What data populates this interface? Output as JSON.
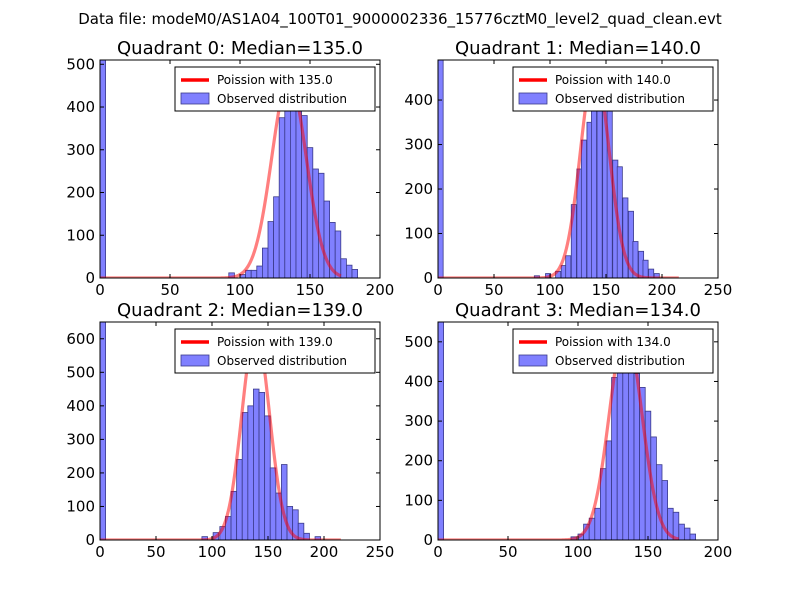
{
  "figure": {
    "suptitle": "Data file: modeM0/AS1A04_100T01_9000002336_15776cztM0_level2_quad_clean.evt"
  },
  "colors": {
    "bar_fill": "#8080ff",
    "bar_edge": "#3a3a8a",
    "fit_line": "#ff0000",
    "axes": "#000000",
    "legend_border": "#000000"
  },
  "chart_data": [
    {
      "type": "bar",
      "title": "Quadrant 0: Median=135.0",
      "xlim": [
        0,
        200
      ],
      "ylim": [
        0,
        510
      ],
      "xticks": [
        0,
        50,
        100,
        150,
        200
      ],
      "yticks": [
        0,
        100,
        200,
        300,
        400,
        500
      ],
      "bin_width": 4,
      "median": 135.0,
      "fit_peak": 466,
      "fit_sigma": 12.3,
      "bars": [
        {
          "x": 0,
          "y": 510
        },
        {
          "x": 92,
          "y": 12
        },
        {
          "x": 100,
          "y": 8
        },
        {
          "x": 104,
          "y": 18
        },
        {
          "x": 108,
          "y": 18
        },
        {
          "x": 112,
          "y": 28
        },
        {
          "x": 116,
          "y": 70
        },
        {
          "x": 120,
          "y": 132
        },
        {
          "x": 124,
          "y": 190
        },
        {
          "x": 128,
          "y": 375
        },
        {
          "x": 132,
          "y": 410
        },
        {
          "x": 136,
          "y": 430
        },
        {
          "x": 140,
          "y": 400
        },
        {
          "x": 144,
          "y": 380
        },
        {
          "x": 148,
          "y": 305
        },
        {
          "x": 152,
          "y": 255
        },
        {
          "x": 156,
          "y": 245
        },
        {
          "x": 160,
          "y": 180
        },
        {
          "x": 164,
          "y": 130
        },
        {
          "x": 168,
          "y": 110
        },
        {
          "x": 172,
          "y": 45
        },
        {
          "x": 176,
          "y": 30
        },
        {
          "x": 180,
          "y": 20
        }
      ],
      "legend": {
        "line_label": "Poission with 135.0",
        "bar_label": "Observed distribution"
      }
    },
    {
      "type": "bar",
      "title": "Quadrant 1: Median=140.0",
      "xlim": [
        0,
        250
      ],
      "ylim": [
        0,
        490
      ],
      "xticks": [
        0,
        50,
        100,
        150,
        200,
        250
      ],
      "yticks": [
        0,
        100,
        200,
        300,
        400
      ],
      "bin_width": 4.6,
      "median": 140.0,
      "fit_peak": 472,
      "fit_sigma": 12.8,
      "bars": [
        {
          "x": 0,
          "y": 490
        },
        {
          "x": 86,
          "y": 5
        },
        {
          "x": 96,
          "y": 10
        },
        {
          "x": 105,
          "y": 15
        },
        {
          "x": 110,
          "y": 28
        },
        {
          "x": 114,
          "y": 50
        },
        {
          "x": 119,
          "y": 165
        },
        {
          "x": 124,
          "y": 245
        },
        {
          "x": 128,
          "y": 310
        },
        {
          "x": 133,
          "y": 350
        },
        {
          "x": 137,
          "y": 385
        },
        {
          "x": 142,
          "y": 395
        },
        {
          "x": 147,
          "y": 425
        },
        {
          "x": 151,
          "y": 375
        },
        {
          "x": 156,
          "y": 265
        },
        {
          "x": 160,
          "y": 250
        },
        {
          "x": 165,
          "y": 180
        },
        {
          "x": 170,
          "y": 150
        },
        {
          "x": 174,
          "y": 82
        },
        {
          "x": 179,
          "y": 60
        },
        {
          "x": 183,
          "y": 40
        },
        {
          "x": 188,
          "y": 20
        },
        {
          "x": 193,
          "y": 10
        }
      ],
      "legend": {
        "line_label": "Poission with 140.0",
        "bar_label": "Observed distribution"
      }
    },
    {
      "type": "bar",
      "title": "Quadrant 2: Median=139.0",
      "xlim": [
        0,
        250
      ],
      "ylim": [
        0,
        650
      ],
      "xticks": [
        0,
        50,
        100,
        150,
        200,
        250
      ],
      "yticks": [
        0,
        100,
        200,
        300,
        400,
        500,
        600
      ],
      "bin_width": 5,
      "median": 139.0,
      "fit_peak": 622,
      "fit_sigma": 12.3,
      "bars": [
        {
          "x": 0,
          "y": 650
        },
        {
          "x": 91,
          "y": 10
        },
        {
          "x": 101,
          "y": 22
        },
        {
          "x": 107,
          "y": 40
        },
        {
          "x": 112,
          "y": 70
        },
        {
          "x": 117,
          "y": 145
        },
        {
          "x": 122,
          "y": 240
        },
        {
          "x": 127,
          "y": 380
        },
        {
          "x": 132,
          "y": 400
        },
        {
          "x": 137,
          "y": 450
        },
        {
          "x": 142,
          "y": 440
        },
        {
          "x": 147,
          "y": 370
        },
        {
          "x": 152,
          "y": 215
        },
        {
          "x": 157,
          "y": 140
        },
        {
          "x": 162,
          "y": 225
        },
        {
          "x": 167,
          "y": 100
        },
        {
          "x": 172,
          "y": 90
        },
        {
          "x": 177,
          "y": 50
        },
        {
          "x": 182,
          "y": 20
        },
        {
          "x": 192,
          "y": 10
        }
      ],
      "legend": {
        "line_label": "Poission with 139.0",
        "bar_label": "Observed distribution"
      }
    },
    {
      "type": "bar",
      "title": "Quadrant 3: Median=134.0",
      "xlim": [
        0,
        200
      ],
      "ylim": [
        0,
        550
      ],
      "xticks": [
        0,
        50,
        100,
        150,
        200
      ],
      "yticks": [
        0,
        100,
        200,
        300,
        400,
        500
      ],
      "bin_width": 4,
      "median": 134.0,
      "fit_peak": 528,
      "fit_sigma": 11.6,
      "bars": [
        {
          "x": 0,
          "y": 550
        },
        {
          "x": 95,
          "y": 8
        },
        {
          "x": 100,
          "y": 15
        },
        {
          "x": 104,
          "y": 40
        },
        {
          "x": 108,
          "y": 55
        },
        {
          "x": 112,
          "y": 80
        },
        {
          "x": 116,
          "y": 180
        },
        {
          "x": 120,
          "y": 250
        },
        {
          "x": 124,
          "y": 410
        },
        {
          "x": 128,
          "y": 475
        },
        {
          "x": 132,
          "y": 520
        },
        {
          "x": 136,
          "y": 510
        },
        {
          "x": 140,
          "y": 420
        },
        {
          "x": 144,
          "y": 385
        },
        {
          "x": 148,
          "y": 325
        },
        {
          "x": 152,
          "y": 260
        },
        {
          "x": 156,
          "y": 190
        },
        {
          "x": 160,
          "y": 150
        },
        {
          "x": 164,
          "y": 80
        },
        {
          "x": 168,
          "y": 70
        },
        {
          "x": 172,
          "y": 40
        },
        {
          "x": 176,
          "y": 30
        },
        {
          "x": 180,
          "y": 15
        }
      ],
      "legend": {
        "line_label": "Poission with 134.0",
        "bar_label": "Observed distribution"
      }
    }
  ]
}
